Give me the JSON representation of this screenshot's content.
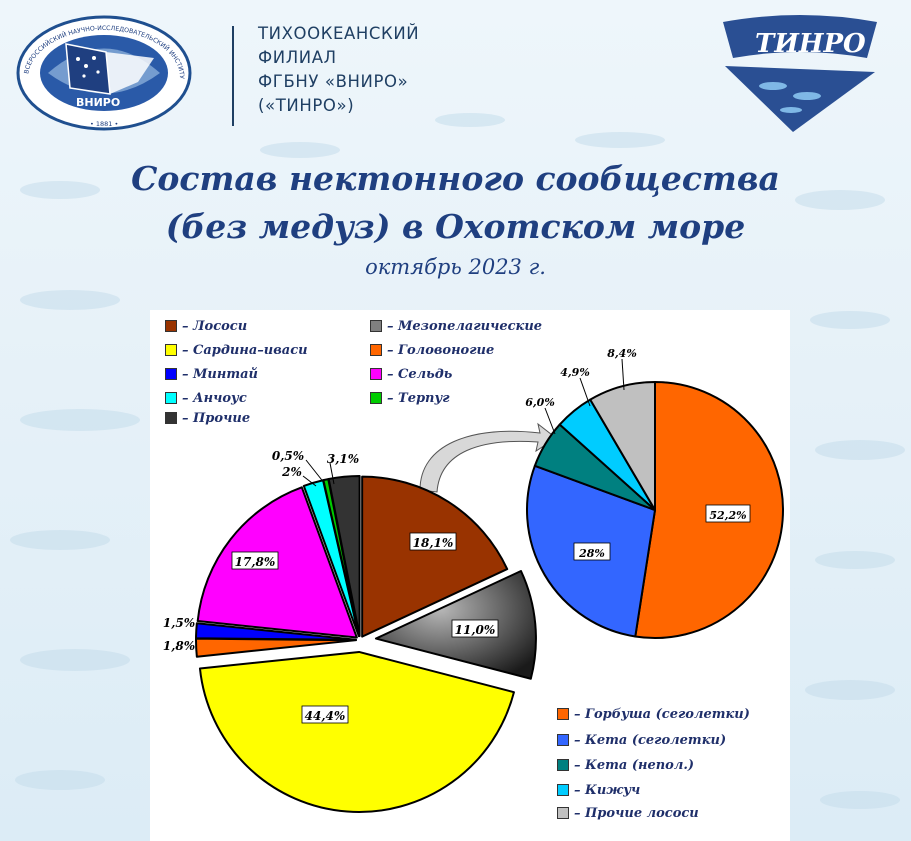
{
  "header": {
    "org_lines": [
      "ТИХООКЕАНСКИЙ",
      "ФИЛИАЛ",
      "ФГБНУ «ВНИРО»",
      "(«ТИНРО»)"
    ],
    "seal_ring_text": "ВСЕРОССИЙСКИЙ НАУЧНО-ИССЛЕДОВАТЕЛЬСКИЙ ИНСТИТУТ РЫБНОГО ХОЗЯЙСТВА И ОКЕАНОГРАФИИ",
    "seal_center": "ВНИРО",
    "seal_year": "• 1881 •",
    "logo_text": "ТИНРО"
  },
  "chart_data": [
    {
      "type": "pie",
      "title_lines": [
        "Состав нектонного сообщества",
        "(без медуз) в Охотском море"
      ],
      "subtitle": "октябрь 2023 г.",
      "legend_position": "top-left",
      "slices": [
        {
          "name": "Лососи",
          "value": 18.1,
          "label": "18,1%",
          "color": "#993300"
        },
        {
          "name": "Мезопелагические",
          "value": 11.0,
          "label": "11,0%",
          "color": "#808080"
        },
        {
          "name": "Сардина–иваси",
          "value": 44.4,
          "label": "44,4%",
          "color": "#ffff00"
        },
        {
          "name": "Головоногие",
          "value": 1.8,
          "label": "1,8%",
          "color": "#ff6600"
        },
        {
          "name": "Минтай",
          "value": 1.5,
          "label": "1,5%",
          "color": "#0000ff"
        },
        {
          "name": "Сельдь",
          "value": 17.8,
          "label": "17,8%",
          "color": "#ff00ff"
        },
        {
          "name": "Анчоус",
          "value": 2,
          "label": "2%",
          "color": "#00ffff"
        },
        {
          "name": "Терпуг",
          "value": 0.5,
          "label": "0,5%",
          "color": "#00cc00"
        },
        {
          "name": "Прочие",
          "value": 3.1,
          "label": "3,1%",
          "color": "#333333"
        }
      ]
    },
    {
      "type": "pie",
      "legend_position": "bottom-right",
      "slices": [
        {
          "name": "Горбуша (сеголетки)",
          "value": 52.2,
          "label": "52,2%",
          "color": "#ff6600"
        },
        {
          "name": "Кета (сеголетки)",
          "value": 28,
          "label": "28%",
          "color": "#3366ff"
        },
        {
          "name": "Кета (непол.)",
          "value": 6.0,
          "label": "6,0%",
          "color": "#008080"
        },
        {
          "name": "Кижуч",
          "value": 4.9,
          "label": "4,9%",
          "color": "#00ccff"
        },
        {
          "name": "Прочие лососи",
          "value": 8.4,
          "label": "8,4%",
          "color": "#c0c0c0"
        }
      ]
    }
  ]
}
